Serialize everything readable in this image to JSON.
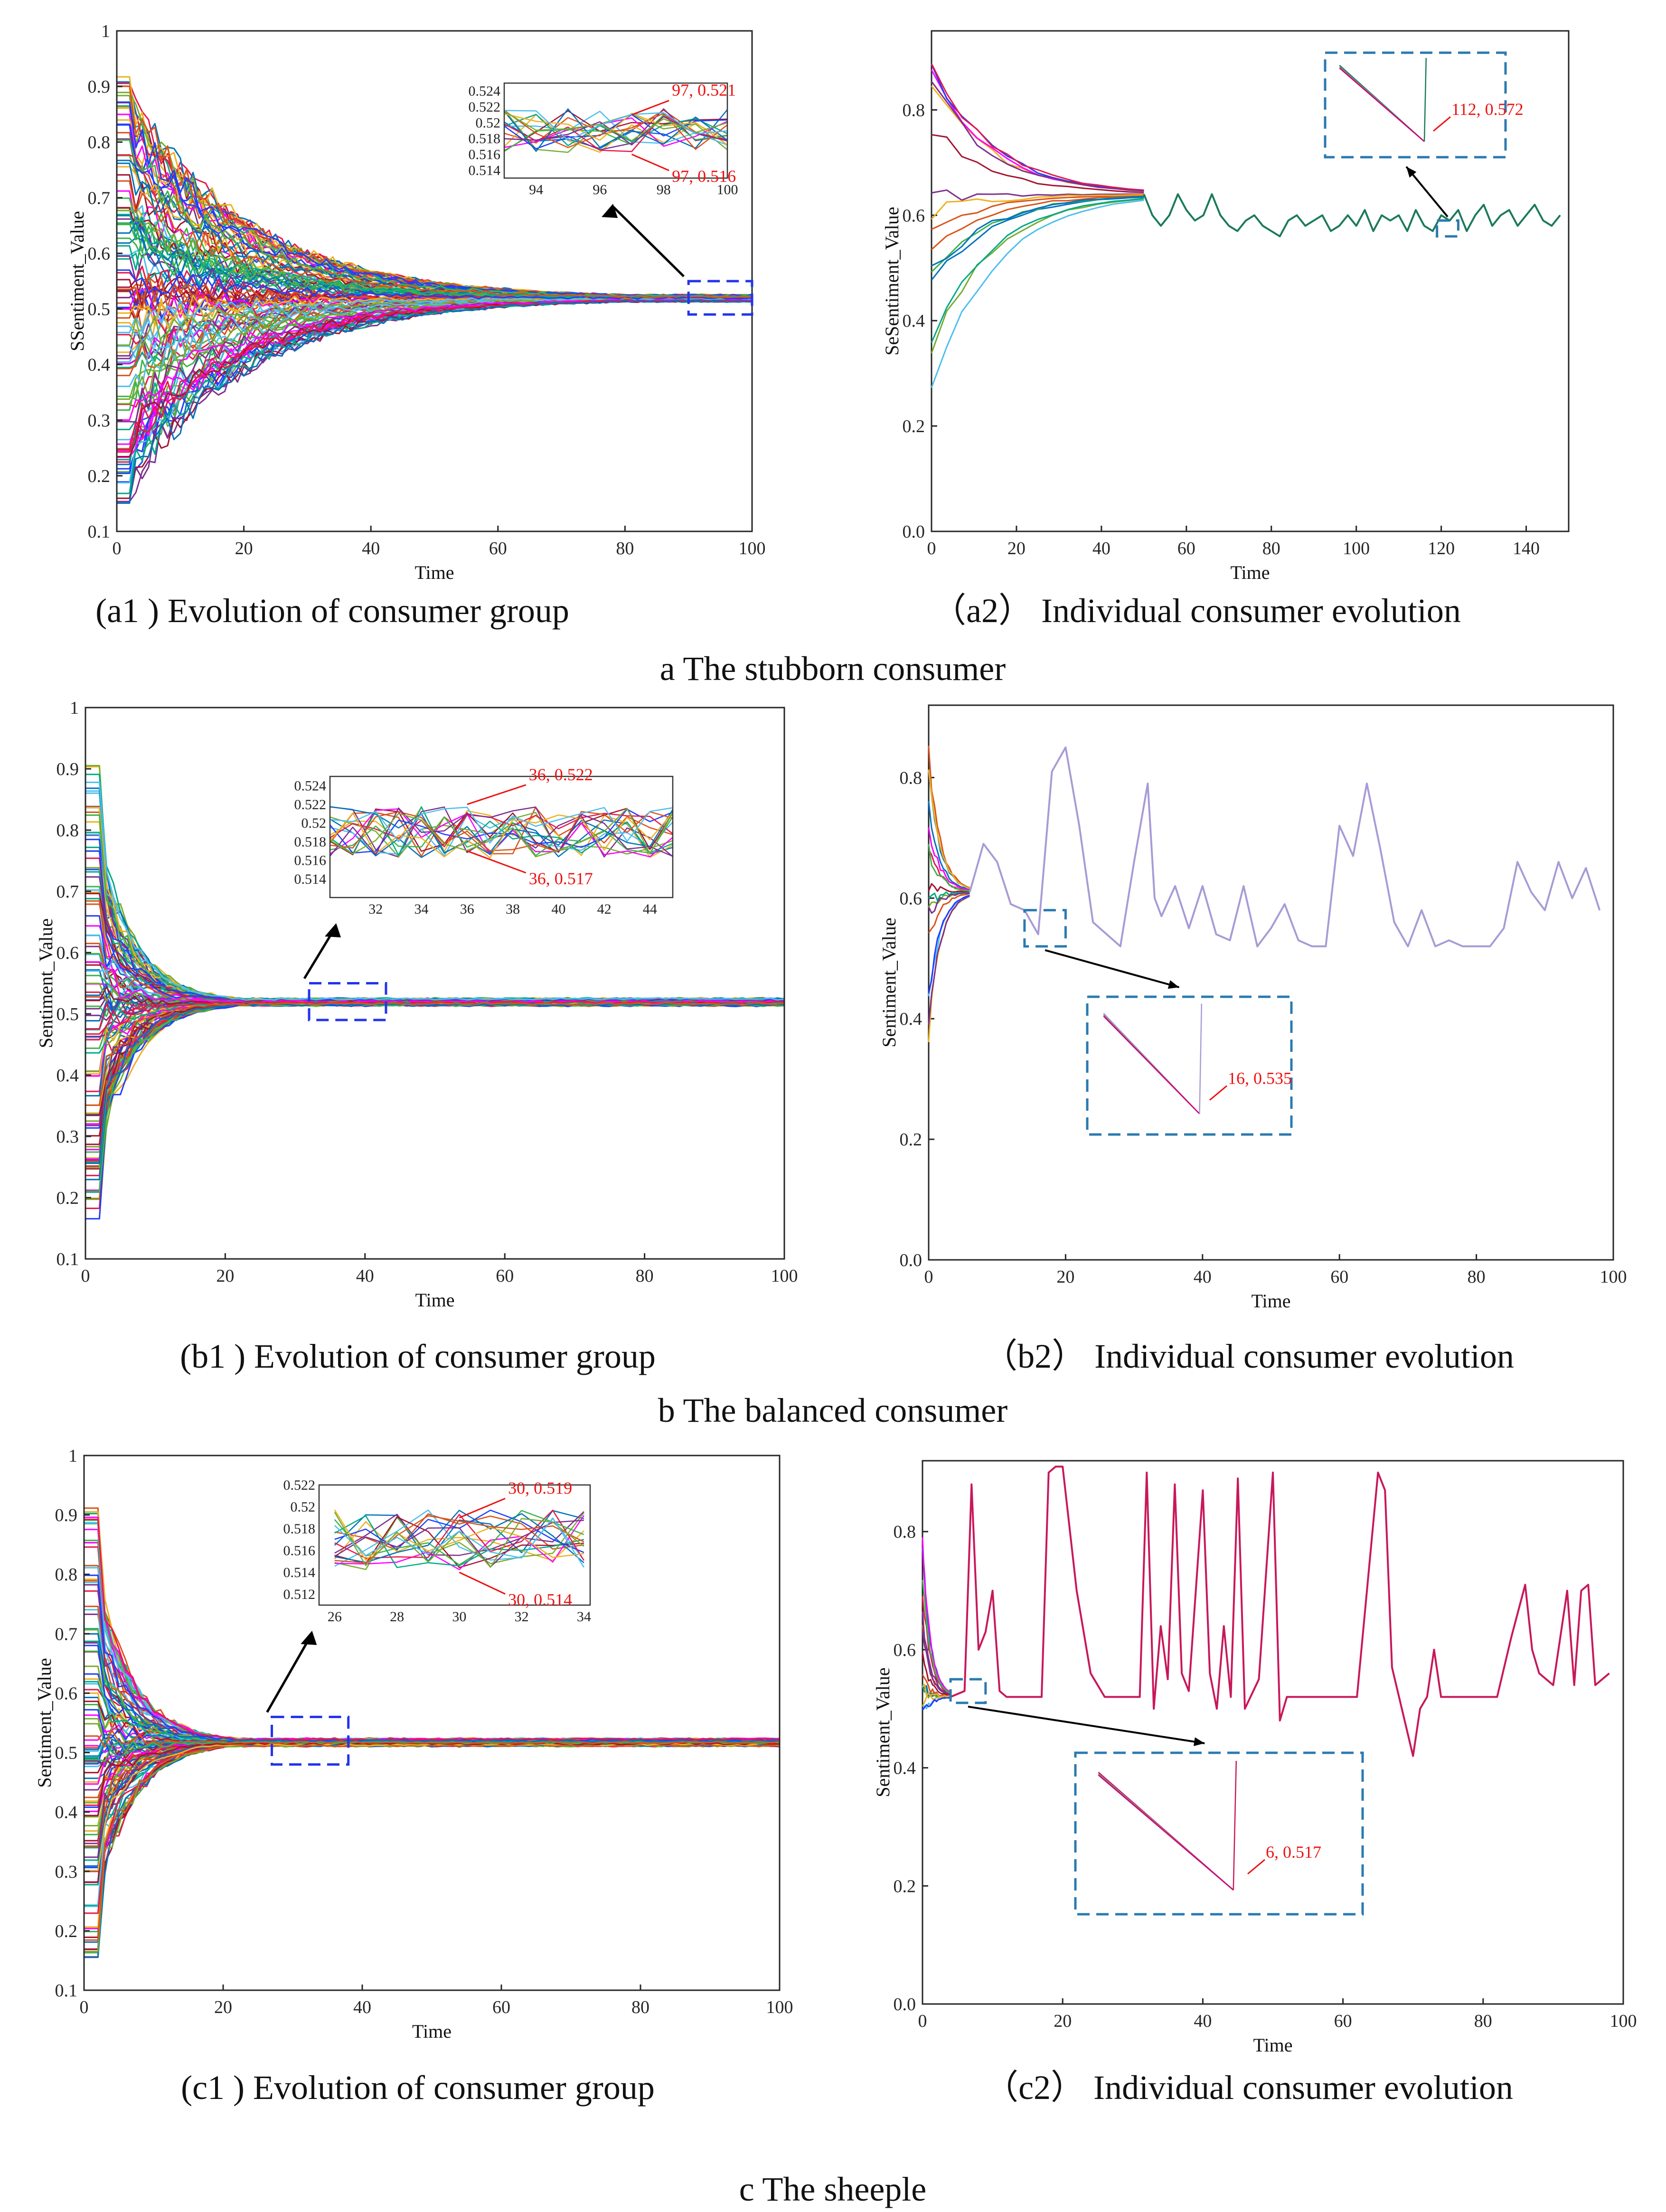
{
  "section_captions": {
    "a": "a The stubborn consumer",
    "b": "b  The balanced consumer",
    "c": "c  The sheeple"
  },
  "chart_data": [
    {
      "id": "a1",
      "type": "line",
      "caption": "(a1 ) Evolution of consumer group",
      "xlabel": "Time",
      "ylabel": "SSentiment_Value",
      "xlim": [
        0,
        100
      ],
      "ylim": [
        0.1,
        1.0
      ],
      "xticks": [
        0,
        20,
        40,
        60,
        80,
        100
      ],
      "yticks": [
        0.1,
        0.2,
        0.3,
        0.4,
        0.5,
        0.6,
        0.7,
        0.8,
        0.9,
        1
      ],
      "series_description_values": {
        "initial_min": 0.15,
        "initial_max": 0.92,
        "converged_value": 0.519,
        "converge_time": 80
      },
      "inset": {
        "xlim": [
          93,
          100
        ],
        "ylim": [
          0.513,
          0.525
        ],
        "xticks": [
          94,
          96,
          98,
          100
        ],
        "yticks": [
          0.514,
          0.516,
          0.518,
          0.52,
          0.522,
          0.524
        ],
        "annotations": [
          {
            "label": "97, 0.521",
            "x": 97,
            "y": 0.521
          },
          {
            "label": "97, 0.516",
            "x": 97,
            "y": 0.516
          }
        ]
      },
      "zoom_region": {
        "x": [
          90,
          100
        ],
        "y": [
          0.49,
          0.55
        ]
      }
    },
    {
      "id": "a2",
      "type": "line",
      "caption": "（a2） Individual consumer evolution",
      "xlabel": "Time",
      "ylabel": "SeSentiment_Value",
      "xlim": [
        0,
        150
      ],
      "ylim": [
        0.0,
        0.95
      ],
      "xticks": [
        0,
        20,
        40,
        60,
        80,
        100,
        120,
        140
      ],
      "yticks": [
        0.0,
        0.2,
        0.4,
        0.6,
        0.8
      ],
      "tail_series": {
        "x": [
          50,
          52,
          54,
          56,
          58,
          60,
          62,
          64,
          66,
          68,
          70,
          72,
          74,
          76,
          78,
          80,
          82,
          84,
          86,
          88,
          90,
          92,
          94,
          96,
          98,
          100,
          102,
          104,
          106,
          108,
          110,
          112,
          114,
          116,
          118,
          120,
          122,
          124,
          126,
          128,
          130,
          132,
          134,
          136,
          138,
          140,
          142,
          144,
          146,
          148
        ],
        "y": [
          0.64,
          0.6,
          0.58,
          0.6,
          0.64,
          0.61,
          0.59,
          0.6,
          0.64,
          0.6,
          0.58,
          0.57,
          0.59,
          0.6,
          0.58,
          0.57,
          0.56,
          0.59,
          0.6,
          0.58,
          0.59,
          0.6,
          0.57,
          0.58,
          0.6,
          0.58,
          0.61,
          0.57,
          0.6,
          0.59,
          0.6,
          0.57,
          0.61,
          0.58,
          0.57,
          0.6,
          0.59,
          0.61,
          0.57,
          0.6,
          0.62,
          0.58,
          0.6,
          0.61,
          0.58,
          0.6,
          0.62,
          0.59,
          0.58,
          0.6
        ]
      },
      "inset": {
        "annotations": [
          {
            "label": "112, 0.572",
            "x": 112,
            "y": 0.572
          }
        ]
      },
      "zoom_region": {
        "x": [
          119,
          124
        ],
        "y": [
          0.56,
          0.59
        ]
      }
    },
    {
      "id": "b1",
      "type": "line",
      "caption": "(b1 ) Evolution of consumer group",
      "xlabel": "Time",
      "ylabel": "Sentiment_Value",
      "xlim": [
        0,
        100
      ],
      "ylim": [
        0.1,
        1.0
      ],
      "xticks": [
        0,
        20,
        40,
        60,
        80,
        100
      ],
      "yticks": [
        0.1,
        0.2,
        0.3,
        0.4,
        0.5,
        0.6,
        0.7,
        0.8,
        0.9,
        1
      ],
      "series_description_values": {
        "initial_min": 0.15,
        "initial_max": 0.92,
        "converged_value": 0.519,
        "converge_time": 22
      },
      "inset": {
        "xlim": [
          30,
          45
        ],
        "ylim": [
          0.512,
          0.525
        ],
        "xticks": [
          32,
          34,
          36,
          38,
          40,
          42,
          44
        ],
        "yticks": [
          0.514,
          0.516,
          0.518,
          0.52,
          0.522,
          0.524
        ],
        "annotations": [
          {
            "label": "36, 0.522",
            "x": 36,
            "y": 0.522
          },
          {
            "label": "36, 0.517",
            "x": 36,
            "y": 0.517
          }
        ]
      },
      "zoom_region": {
        "x": [
          32,
          43
        ],
        "y": [
          0.49,
          0.55
        ]
      }
    },
    {
      "id": "b2",
      "type": "line",
      "caption": "（b2） Individual consumer evolution",
      "xlabel": "Time",
      "ylabel": "Sentiment_Value",
      "xlim": [
        0,
        100
      ],
      "ylim": [
        0.0,
        0.92
      ],
      "xticks": [
        0,
        20,
        40,
        60,
        80,
        100
      ],
      "yticks": [
        0.0,
        0.2,
        0.4,
        0.6,
        0.8
      ],
      "tail_series": {
        "x": [
          6,
          8,
          10,
          12,
          14,
          16,
          18,
          20,
          22,
          24,
          26,
          28,
          30,
          32,
          33,
          34,
          36,
          38,
          40,
          42,
          44,
          46,
          48,
          50,
          52,
          54,
          56,
          58,
          60,
          62,
          64,
          66,
          68,
          70,
          72,
          74,
          76,
          78,
          80,
          82,
          84,
          86,
          88,
          90,
          92,
          94,
          96,
          98
        ],
        "y": [
          0.61,
          0.69,
          0.66,
          0.59,
          0.58,
          0.54,
          0.81,
          0.85,
          0.72,
          0.56,
          0.54,
          0.52,
          0.66,
          0.79,
          0.6,
          0.57,
          0.62,
          0.55,
          0.62,
          0.54,
          0.53,
          0.62,
          0.52,
          0.55,
          0.59,
          0.53,
          0.52,
          0.52,
          0.72,
          0.67,
          0.79,
          0.68,
          0.56,
          0.52,
          0.58,
          0.52,
          0.53,
          0.52,
          0.52,
          0.52,
          0.55,
          0.66,
          0.61,
          0.58,
          0.66,
          0.6,
          0.65,
          0.58
        ]
      },
      "inset": {
        "annotations": [
          {
            "label": "16, 0.535",
            "x": 16,
            "y": 0.535
          }
        ]
      },
      "zoom_region": {
        "x": [
          14,
          20
        ],
        "y": [
          0.52,
          0.58
        ]
      }
    },
    {
      "id": "c1",
      "type": "line",
      "caption": "(c1 ) Evolution of consumer group",
      "xlabel": "Time",
      "ylabel": "Sentiment_Value",
      "xlim": [
        0,
        100
      ],
      "ylim": [
        0.1,
        1.0
      ],
      "xticks": [
        0,
        20,
        40,
        60,
        80,
        100
      ],
      "yticks": [
        0.1,
        0.2,
        0.3,
        0.4,
        0.5,
        0.6,
        0.7,
        0.8,
        0.9,
        1
      ],
      "series_description_values": {
        "initial_min": 0.15,
        "initial_max": 0.92,
        "converged_value": 0.517,
        "converge_time": 22
      },
      "inset": {
        "xlim": [
          25.5,
          34.2
        ],
        "ylim": [
          0.511,
          0.522
        ],
        "xticks": [
          26,
          28,
          30,
          32,
          34
        ],
        "yticks": [
          0.512,
          0.514,
          0.516,
          0.518,
          0.52,
          0.522
        ],
        "annotations": [
          {
            "label": "30, 0.519",
            "x": 30,
            "y": 0.519
          },
          {
            "label": "30, 0.514",
            "x": 30,
            "y": 0.514
          }
        ]
      },
      "zoom_region": {
        "x": [
          27,
          38
        ],
        "y": [
          0.48,
          0.56
        ]
      }
    },
    {
      "id": "c2",
      "type": "line",
      "caption": "（c2） Individual consumer evolution",
      "xlabel": "Time",
      "ylabel": "Sentiment_Value",
      "xlim": [
        0,
        100
      ],
      "ylim": [
        0.0,
        0.92
      ],
      "xticks": [
        0,
        20,
        40,
        60,
        80,
        100
      ],
      "yticks": [
        0.0,
        0.2,
        0.4,
        0.6,
        0.8
      ],
      "tail_series": {
        "x": [
          4,
          6,
          7,
          8,
          9,
          10,
          11,
          12,
          14,
          16,
          17,
          18,
          19,
          20,
          22,
          24,
          26,
          28,
          30,
          31,
          32,
          33,
          34,
          35,
          36,
          37,
          38,
          40,
          41,
          42,
          43,
          44,
          45,
          46,
          48,
          50,
          51,
          52,
          54,
          56,
          58,
          60,
          62,
          65,
          66,
          67,
          68,
          70,
          71,
          72,
          73,
          74,
          76,
          78,
          80,
          82,
          84,
          86,
          87,
          88,
          90,
          92,
          93,
          94,
          95,
          96,
          98
        ],
        "y": [
          0.52,
          0.53,
          0.88,
          0.6,
          0.63,
          0.7,
          0.53,
          0.52,
          0.52,
          0.52,
          0.52,
          0.9,
          0.91,
          0.91,
          0.7,
          0.56,
          0.52,
          0.52,
          0.52,
          0.52,
          0.9,
          0.5,
          0.64,
          0.55,
          0.88,
          0.56,
          0.53,
          0.87,
          0.56,
          0.5,
          0.64,
          0.52,
          0.89,
          0.5,
          0.55,
          0.9,
          0.48,
          0.52,
          0.52,
          0.52,
          0.52,
          0.52,
          0.52,
          0.9,
          0.87,
          0.57,
          0.52,
          0.42,
          0.5,
          0.52,
          0.6,
          0.52,
          0.52,
          0.52,
          0.52,
          0.52,
          0.62,
          0.71,
          0.6,
          0.56,
          0.54,
          0.7,
          0.54,
          0.7,
          0.71,
          0.54,
          0.56
        ]
      },
      "inset": {
        "annotations": [
          {
            "label": "6, 0.517",
            "x": 6,
            "y": 0.517
          }
        ]
      },
      "zoom_region": {
        "x": [
          4,
          9
        ],
        "y": [
          0.51,
          0.55
        ]
      }
    }
  ],
  "colors": {
    "palette": [
      "#0072bd",
      "#d95319",
      "#edb120",
      "#7e2f8e",
      "#77ac30",
      "#4dbeee",
      "#a2142f",
      "#ff00ff",
      "#00aa88",
      "#1f3fff",
      "#e6194b",
      "#3cb44b"
    ],
    "a2_tail": "#1b7a5a",
    "b2_tail": "#a89bd6",
    "c2_tail": "#c8185a",
    "annotation": "#ee1111",
    "zoom_box": "#2233ee",
    "zoom_box_teal": "#2a7ab0"
  }
}
